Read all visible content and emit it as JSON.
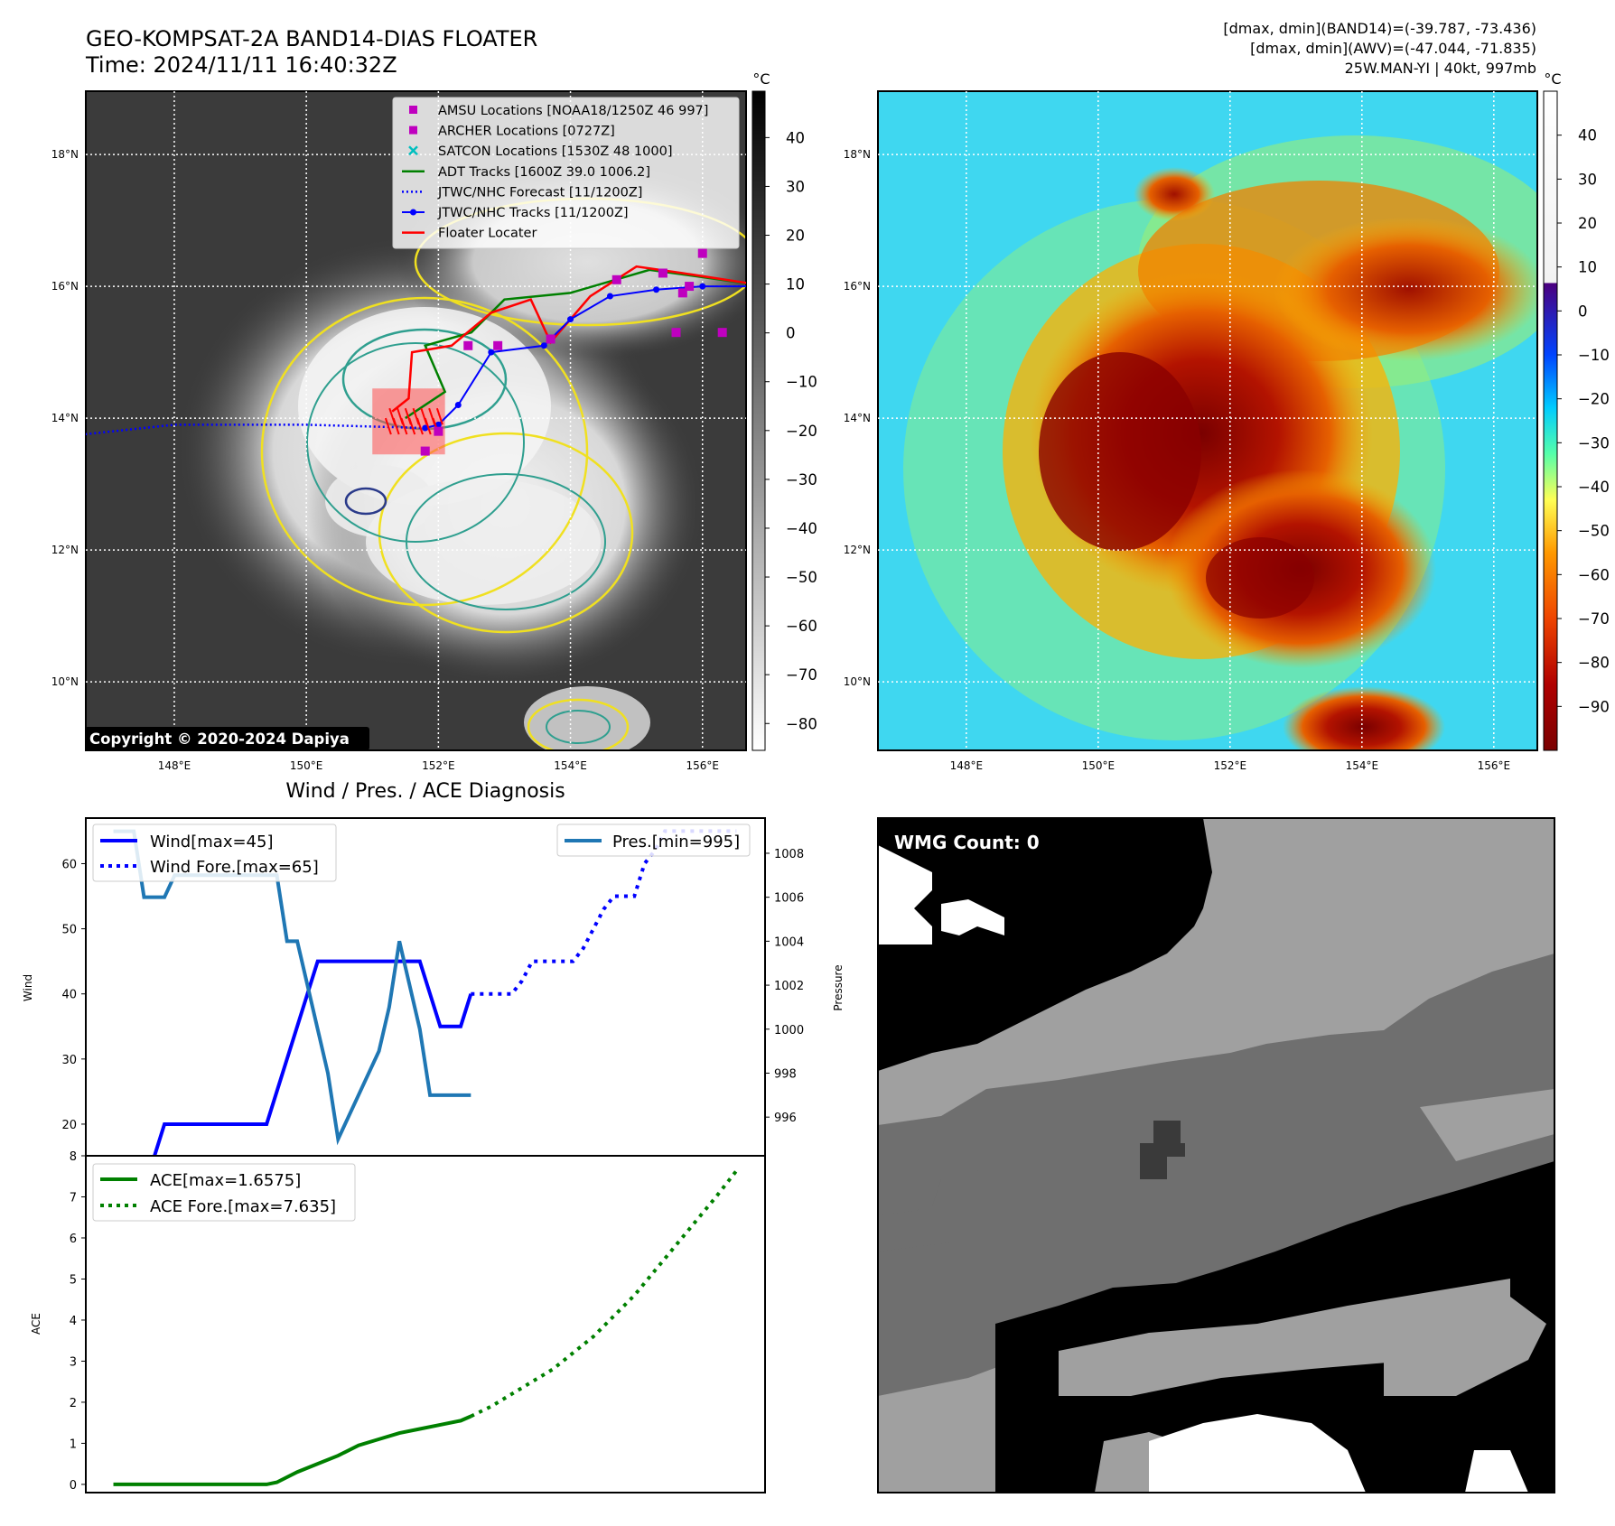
{
  "header": {
    "title_line1": "GEO-KOMPSAT-2A BAND14-DIAS FLOATER",
    "title_line2": "Time: 2024/11/11 16:40:32Z",
    "info_line1": "[dmax, dmin](BAND14)=(-39.787, -73.436)",
    "info_line2": "[dmax, dmin](AWV)=(-47.044, -71.835)",
    "info_line3": "25W.MAN-YI | 40kt, 997mb"
  },
  "copyright": "Copyright © 2020-2024 Dapiya",
  "map": {
    "lat_ticks": [
      "18°N",
      "16°N",
      "14°N",
      "12°N",
      "10°N"
    ],
    "lon_ticks": [
      "148°E",
      "150°E",
      "152°E",
      "154°E",
      "156°E"
    ],
    "colorbar_unit": "°C",
    "colorbar1_ticks": [
      "40",
      "30",
      "20",
      "10",
      "0",
      "−10",
      "−20",
      "−30",
      "−40",
      "−50",
      "−60",
      "−70",
      "−80"
    ],
    "colorbar2_ticks": [
      "40",
      "30",
      "20",
      "10",
      "0",
      "−10",
      "−20",
      "−30",
      "−40",
      "−50",
      "−60",
      "−70",
      "−80",
      "−90"
    ],
    "legend": [
      {
        "label": "AMSU Locations [NOAA18/1250Z 46 997]",
        "marker": "square",
        "color": "#bf00bf"
      },
      {
        "label": "ARCHER Locations [0727Z]",
        "marker": "square",
        "color": "#bf00bf"
      },
      {
        "label": "SATCON Locations [1530Z 48 1000]",
        "marker": "x",
        "color": "#00bfbf"
      },
      {
        "label": "ADT Tracks [1600Z 39.0 1006.2]",
        "marker": "line",
        "color": "#008000"
      },
      {
        "label": "JTWC/NHC Forecast [11/1200Z]",
        "marker": "dotted",
        "color": "#0000ff"
      },
      {
        "label": "JTWC/NHC Tracks [11/1200Z]",
        "marker": "line-dot",
        "color": "#0000ff"
      },
      {
        "label": "Floater Locater",
        "marker": "line",
        "color": "#ff0000"
      }
    ],
    "jtwc_track": [
      [
        156.9,
        16.0
      ],
      [
        156.0,
        16.0
      ],
      [
        155.3,
        15.95
      ],
      [
        154.6,
        15.85
      ],
      [
        154.0,
        15.5
      ],
      [
        153.6,
        15.1
      ],
      [
        152.8,
        15.0
      ],
      [
        152.3,
        14.2
      ],
      [
        152.0,
        13.9
      ],
      [
        151.8,
        13.85
      ]
    ],
    "jtwc_forecast": [
      [
        151.8,
        13.85
      ],
      [
        150.0,
        13.9
      ],
      [
        148.0,
        13.9
      ],
      [
        146.6,
        13.75
      ]
    ],
    "adt_track": [
      [
        157.0,
        16.0
      ],
      [
        155.2,
        16.25
      ],
      [
        154.0,
        15.9
      ],
      [
        153.0,
        15.8
      ],
      [
        152.5,
        15.3
      ],
      [
        151.8,
        15.1
      ],
      [
        152.1,
        14.4
      ],
      [
        151.5,
        14.0
      ]
    ],
    "floater_track": [
      [
        157.0,
        16.0
      ],
      [
        155.7,
        16.2
      ],
      [
        155.0,
        16.3
      ],
      [
        154.3,
        15.85
      ],
      [
        153.7,
        15.15
      ],
      [
        153.4,
        15.8
      ],
      [
        152.8,
        15.6
      ],
      [
        152.2,
        15.1
      ],
      [
        151.6,
        15.0
      ],
      [
        151.55,
        14.3
      ],
      [
        151.3,
        14.1
      ]
    ],
    "amsu_points": [
      [
        152.45,
        15.1
      ],
      [
        152.9,
        15.1
      ],
      [
        153.7,
        15.2
      ],
      [
        155.6,
        15.3
      ],
      [
        156.3,
        15.3
      ],
      [
        155.7,
        15.9
      ],
      [
        155.8,
        16.0
      ],
      [
        154.7,
        16.1
      ],
      [
        155.4,
        16.2
      ],
      [
        156.0,
        16.5
      ],
      [
        152.0,
        13.8
      ],
      [
        151.8,
        13.5
      ]
    ],
    "highlight_box": {
      "lon_min": 151.0,
      "lon_max": 152.1,
      "lat_min": 13.45,
      "lat_max": 14.45
    }
  },
  "bottom_left": {
    "title": "Wind / Pres. / ACE Diagnosis",
    "wind_ylabel": "Wind",
    "pressure_ylabel": "Pressure",
    "ace_ylabel": "ACE",
    "legend": {
      "wind": "Wind[max=45]",
      "wind_fore": "Wind Fore.[max=65]",
      "pres": "Pres.[min=995]",
      "ace": "ACE[max=1.6575]",
      "ace_fore": "ACE Fore.[max=7.635]"
    },
    "wind_ticks": [
      "60",
      "50",
      "40",
      "30",
      "20"
    ],
    "pres_ticks": [
      "1008",
      "1006",
      "1004",
      "1002",
      "1000",
      "998",
      "996"
    ],
    "ace_ticks": [
      "8",
      "7",
      "6",
      "5",
      "4",
      "3",
      "2",
      "1",
      "0"
    ]
  },
  "chart_data": [
    {
      "type": "line",
      "title": "Wind / Pres. / ACE Diagnosis",
      "xlabel": "",
      "ylabel": "Wind",
      "y2label": "Pressure",
      "ylim": [
        15,
        67
      ],
      "y2lim": [
        994.2,
        1009.6
      ],
      "series": [
        {
          "name": "Wind[max=45]",
          "axis": "left",
          "style": "solid",
          "color": "#0000ff",
          "x": [
            0,
            1,
            2,
            3,
            4,
            5,
            6,
            7,
            8,
            9,
            10,
            11,
            12,
            13,
            14,
            15,
            16,
            17,
            18,
            19,
            20,
            21,
            22,
            23,
            24,
            25,
            26,
            27,
            28,
            29,
            30,
            31,
            32,
            33,
            34,
            35,
            36,
            37,
            38,
            39,
            40
          ],
          "y": [
            15,
            15,
            15,
            15,
            15,
            20,
            20,
            20,
            20,
            20,
            20,
            20,
            20,
            20,
            20,
            20,
            25,
            30,
            35,
            40,
            45,
            45,
            45,
            45,
            45,
            45,
            45,
            45,
            45,
            45,
            45,
            40,
            35,
            35,
            35,
            40,
            null,
            null,
            null,
            null,
            null
          ]
        },
        {
          "name": "Wind Fore.[max=65]",
          "axis": "left",
          "style": "dotted",
          "color": "#0000ff",
          "x": [
            35,
            36,
            37,
            38,
            39,
            40,
            41,
            42,
            43,
            44,
            45,
            46,
            47,
            48,
            49,
            50,
            51,
            52,
            53,
            54,
            55,
            56,
            57,
            58,
            59,
            60,
            61
          ],
          "y": [
            40,
            40,
            40,
            40,
            40,
            42,
            45,
            45,
            45,
            45,
            45,
            47,
            50,
            53,
            55,
            55,
            55,
            60,
            62,
            65,
            65,
            65,
            65,
            65,
            65,
            65,
            65
          ]
        },
        {
          "name": "Pres.[min=995]",
          "axis": "right",
          "style": "solid",
          "color": "#1f77b4",
          "x": [
            0,
            1,
            2,
            3,
            4,
            5,
            6,
            7,
            8,
            9,
            10,
            11,
            12,
            13,
            14,
            15,
            16,
            17,
            18,
            19,
            20,
            21,
            22,
            23,
            24,
            25,
            26,
            27,
            28,
            29,
            30,
            31,
            32,
            33,
            34,
            35
          ],
          "y": [
            1009,
            1009,
            1009,
            1006,
            1006,
            1006,
            1007,
            1007,
            1007,
            1007,
            1007,
            1007,
            1007,
            1007,
            1007,
            1007,
            1007,
            1004,
            1004,
            1002,
            1000,
            998,
            995,
            996,
            997,
            998,
            999,
            1001,
            1004,
            1002,
            1000,
            997,
            997,
            997,
            997,
            997
          ]
        }
      ]
    },
    {
      "type": "line",
      "xlabel": "",
      "ylabel": "ACE",
      "ylim": [
        -0.2,
        8
      ],
      "series": [
        {
          "name": "ACE[max=1.6575]",
          "style": "solid",
          "color": "#008000",
          "x": [
            0,
            3,
            6,
            9,
            12,
            15,
            16,
            18,
            20,
            22,
            24,
            26,
            28,
            30,
            32,
            34,
            35
          ],
          "y": [
            0,
            0,
            0,
            0,
            0,
            0,
            0.05,
            0.3,
            0.5,
            0.7,
            0.95,
            1.1,
            1.25,
            1.35,
            1.45,
            1.55,
            1.6575
          ]
        },
        {
          "name": "ACE Fore.[max=7.635]",
          "style": "dotted",
          "color": "#008000",
          "x": [
            35,
            37,
            39,
            41,
            43,
            45,
            47,
            49,
            51,
            53,
            55,
            57,
            59,
            61
          ],
          "y": [
            1.6575,
            1.9,
            2.2,
            2.5,
            2.8,
            3.2,
            3.6,
            4.1,
            4.6,
            5.2,
            5.8,
            6.4,
            7.0,
            7.635
          ]
        }
      ]
    }
  ],
  "wmg": {
    "label": "WMG Count: 0"
  }
}
